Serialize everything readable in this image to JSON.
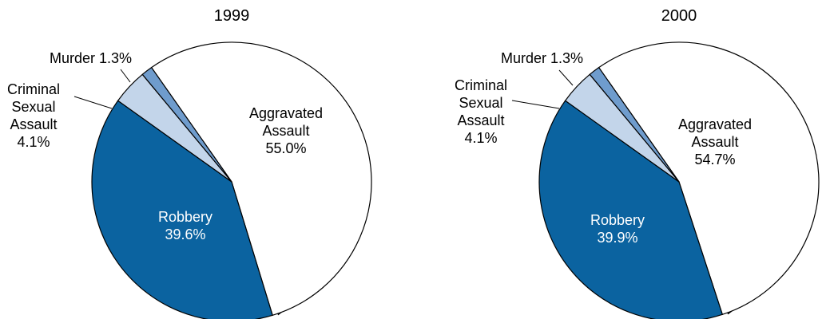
{
  "chart_data": [
    {
      "type": "pie",
      "title": "1999",
      "slices": [
        {
          "label": "Aggravated Assault",
          "value": 55.0,
          "display_lines": [
            "Aggravated",
            "Assault",
            "55.0%"
          ],
          "color": "#ffffff"
        },
        {
          "label": "Robbery",
          "value": 39.6,
          "display_lines": [
            "Robbery",
            "39.6%"
          ],
          "color": "#0b63a0"
        },
        {
          "label": "Criminal Sexual Assault",
          "value": 4.1,
          "display_lines": [
            "Criminal",
            "Sexual",
            "Assault",
            "4.1%"
          ],
          "color": "#c3d5ea"
        },
        {
          "label": "Murder",
          "value": 1.3,
          "display_lines": [
            "Murder 1.3%"
          ],
          "color": "#6f9ccd"
        }
      ]
    },
    {
      "type": "pie",
      "title": "2000",
      "slices": [
        {
          "label": "Aggravated Assault",
          "value": 54.7,
          "display_lines": [
            "Aggravated",
            "Assault",
            "54.7%"
          ],
          "color": "#ffffff"
        },
        {
          "label": "Robbery",
          "value": 39.9,
          "display_lines": [
            "Robbery",
            "39.9%"
          ],
          "color": "#0b63a0"
        },
        {
          "label": "Criminal Sexual Assault",
          "value": 4.1,
          "display_lines": [
            "Criminal",
            "Sexual",
            "Assault",
            "4.1%"
          ],
          "color": "#c3d5ea"
        },
        {
          "label": "Murder",
          "value": 1.3,
          "display_lines": [
            "Murder 1.3%"
          ],
          "color": "#6f9ccd"
        }
      ]
    }
  ]
}
